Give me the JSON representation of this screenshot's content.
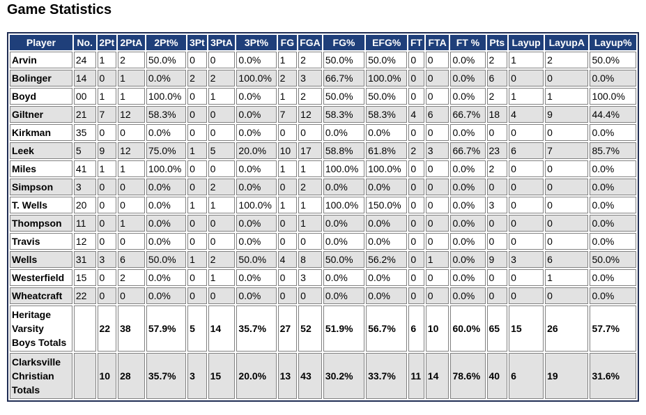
{
  "title": "Game Statistics",
  "columns": [
    "Player",
    "No.",
    "2Pt",
    "2PtA",
    "2Pt%",
    "3Pt",
    "3PtA",
    "3Pt%",
    "FG",
    "FGA",
    "FG%",
    "EFG%",
    "FT",
    "FTA",
    "FT %",
    "Pts",
    "Layup",
    "LayupA",
    "Layup%"
  ],
  "rows": [
    [
      "Arvin",
      "24",
      "1",
      "2",
      "50.0%",
      "0",
      "0",
      "0.0%",
      "1",
      "2",
      "50.0%",
      "50.0%",
      "0",
      "0",
      "0.0%",
      "2",
      "1",
      "2",
      "50.0%"
    ],
    [
      "Bolinger",
      "14",
      "0",
      "1",
      "0.0%",
      "2",
      "2",
      "100.0%",
      "2",
      "3",
      "66.7%",
      "100.0%",
      "0",
      "0",
      "0.0%",
      "6",
      "0",
      "0",
      "0.0%"
    ],
    [
      "Boyd",
      "00",
      "1",
      "1",
      "100.0%",
      "0",
      "1",
      "0.0%",
      "1",
      "2",
      "50.0%",
      "50.0%",
      "0",
      "0",
      "0.0%",
      "2",
      "1",
      "1",
      "100.0%"
    ],
    [
      "Giltner",
      "21",
      "7",
      "12",
      "58.3%",
      "0",
      "0",
      "0.0%",
      "7",
      "12",
      "58.3%",
      "58.3%",
      "4",
      "6",
      "66.7%",
      "18",
      "4",
      "9",
      "44.4%"
    ],
    [
      "Kirkman",
      "35",
      "0",
      "0",
      "0.0%",
      "0",
      "0",
      "0.0%",
      "0",
      "0",
      "0.0%",
      "0.0%",
      "0",
      "0",
      "0.0%",
      "0",
      "0",
      "0",
      "0.0%"
    ],
    [
      "Leek",
      "5",
      "9",
      "12",
      "75.0%",
      "1",
      "5",
      "20.0%",
      "10",
      "17",
      "58.8%",
      "61.8%",
      "2",
      "3",
      "66.7%",
      "23",
      "6",
      "7",
      "85.7%"
    ],
    [
      "Miles",
      "41",
      "1",
      "1",
      "100.0%",
      "0",
      "0",
      "0.0%",
      "1",
      "1",
      "100.0%",
      "100.0%",
      "0",
      "0",
      "0.0%",
      "2",
      "0",
      "0",
      "0.0%"
    ],
    [
      "Simpson",
      "3",
      "0",
      "0",
      "0.0%",
      "0",
      "2",
      "0.0%",
      "0",
      "2",
      "0.0%",
      "0.0%",
      "0",
      "0",
      "0.0%",
      "0",
      "0",
      "0",
      "0.0%"
    ],
    [
      "T. Wells",
      "20",
      "0",
      "0",
      "0.0%",
      "1",
      "1",
      "100.0%",
      "1",
      "1",
      "100.0%",
      "150.0%",
      "0",
      "0",
      "0.0%",
      "3",
      "0",
      "0",
      "0.0%"
    ],
    [
      "Thompson",
      "11",
      "0",
      "1",
      "0.0%",
      "0",
      "0",
      "0.0%",
      "0",
      "1",
      "0.0%",
      "0.0%",
      "0",
      "0",
      "0.0%",
      "0",
      "0",
      "0",
      "0.0%"
    ],
    [
      "Travis",
      "12",
      "0",
      "0",
      "0.0%",
      "0",
      "0",
      "0.0%",
      "0",
      "0",
      "0.0%",
      "0.0%",
      "0",
      "0",
      "0.0%",
      "0",
      "0",
      "0",
      "0.0%"
    ],
    [
      "Wells",
      "31",
      "3",
      "6",
      "50.0%",
      "1",
      "2",
      "50.0%",
      "4",
      "8",
      "50.0%",
      "56.2%",
      "0",
      "1",
      "0.0%",
      "9",
      "3",
      "6",
      "50.0%"
    ],
    [
      "Westerfield",
      "15",
      "0",
      "2",
      "0.0%",
      "0",
      "1",
      "0.0%",
      "0",
      "3",
      "0.0%",
      "0.0%",
      "0",
      "0",
      "0.0%",
      "0",
      "0",
      "1",
      "0.0%"
    ],
    [
      "Wheatcraft",
      "22",
      "0",
      "0",
      "0.0%",
      "0",
      "0",
      "0.0%",
      "0",
      "0",
      "0.0%",
      "0.0%",
      "0",
      "0",
      "0.0%",
      "0",
      "0",
      "0",
      "0.0%"
    ]
  ],
  "totals": [
    [
      "Heritage Varsity Boys Totals",
      "",
      "22",
      "38",
      "57.9%",
      "5",
      "14",
      "35.7%",
      "27",
      "52",
      "51.9%",
      "56.7%",
      "6",
      "10",
      "60.0%",
      "65",
      "15",
      "26",
      "57.7%"
    ],
    [
      "Clarksville Christian Totals",
      "",
      "10",
      "28",
      "35.7%",
      "3",
      "15",
      "20.0%",
      "13",
      "43",
      "30.2%",
      "33.7%",
      "11",
      "14",
      "78.6%",
      "40",
      "6",
      "19",
      "31.6%"
    ]
  ],
  "colors": {
    "header_bg": "#1f3f7a",
    "header_text": "#ffffff",
    "alt_row": "#e2e2e2",
    "border": "#808080"
  }
}
